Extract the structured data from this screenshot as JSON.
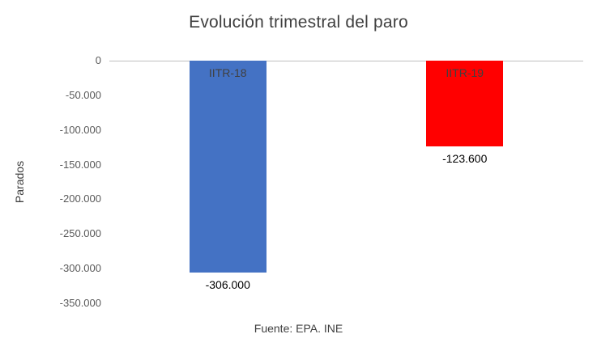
{
  "chart_data": {
    "type": "bar",
    "title": "Evolución trimestral del paro",
    "ylabel": "Parados",
    "xlabel": "Fuente: EPA. INE",
    "categories": [
      "IITR-18",
      "IITR-19"
    ],
    "values": [
      -306000,
      -123600
    ],
    "value_labels": [
      "-306.000",
      "-123.600"
    ],
    "bar_colors": [
      "#4472C4",
      "#FF0000"
    ],
    "ylim": [
      -350000,
      0
    ],
    "ytick_values": [
      0,
      -50000,
      -100000,
      -150000,
      -200000,
      -250000,
      -300000,
      -350000
    ],
    "ytick_labels": [
      "0",
      "-50.000",
      "-100.000",
      "-150.000",
      "-200.000",
      "-250.000",
      "-300.000",
      "-350.000"
    ],
    "grid": false,
    "legend": "none"
  }
}
